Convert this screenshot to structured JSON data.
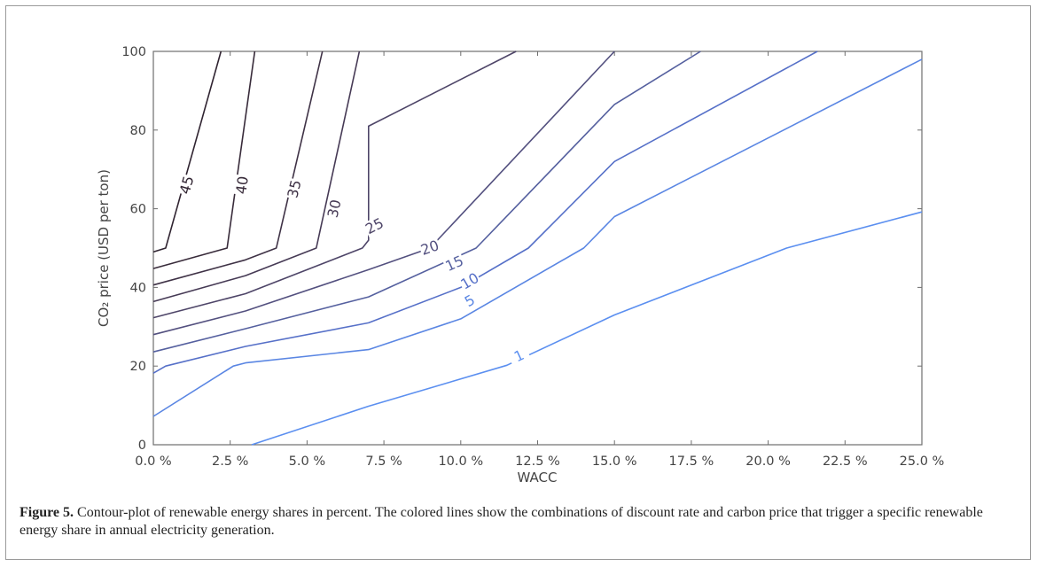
{
  "chart_data": {
    "type": "line",
    "subtype": "contour",
    "xlabel": "WACC",
    "ylabel": "CO₂ price (USD per ton)",
    "xlim": [
      0,
      25
    ],
    "ylim": [
      0,
      100
    ],
    "x_ticks": [
      "0.0 %",
      "2.5 %",
      "5.0 %",
      "7.5 %",
      "10.0 %",
      "12.5 %",
      "15.0 %",
      "17.5 %",
      "20.0 %",
      "22.5 %",
      "25.0 %"
    ],
    "y_ticks": [
      "0",
      "20",
      "40",
      "60",
      "80",
      "100"
    ],
    "grid": false,
    "series": [
      {
        "name": "1",
        "color": "#5b8ff0",
        "points": [
          [
            3.2,
            0
          ],
          [
            7,
            9.8
          ],
          [
            11.5,
            20.2
          ],
          [
            15,
            33
          ],
          [
            20.6,
            50
          ],
          [
            25,
            59.2
          ]
        ]
      },
      {
        "name": "5",
        "color": "#5a86e3",
        "points": [
          [
            0,
            7.2
          ],
          [
            2.6,
            20
          ],
          [
            3,
            20.8
          ],
          [
            7,
            24.2
          ],
          [
            10,
            32
          ],
          [
            14,
            50
          ],
          [
            15,
            58
          ],
          [
            25,
            98
          ]
        ]
      },
      {
        "name": "10",
        "color": "#5670c8",
        "points": [
          [
            0,
            18.2
          ],
          [
            0.4,
            20
          ],
          [
            3,
            25
          ],
          [
            7,
            31
          ],
          [
            10,
            40
          ],
          [
            12.2,
            50
          ],
          [
            15,
            72
          ],
          [
            21.6,
            100
          ]
        ]
      },
      {
        "name": "15",
        "color": "#55609f",
        "points": [
          [
            0,
            23.6
          ],
          [
            3,
            29.5
          ],
          [
            7,
            37.6
          ],
          [
            10.5,
            50
          ],
          [
            15,
            86.5
          ],
          [
            17.8,
            100
          ]
        ]
      },
      {
        "name": "20",
        "color": "#53507f",
        "points": [
          [
            0,
            28
          ],
          [
            3,
            34
          ],
          [
            7,
            44.5
          ],
          [
            9,
            50
          ],
          [
            15,
            100
          ]
        ]
      },
      {
        "name": "25",
        "color": "#4e4568",
        "points": [
          [
            0,
            32.3
          ],
          [
            3,
            38.4
          ],
          [
            6.8,
            50
          ],
          [
            7,
            52
          ],
          [
            7,
            81
          ],
          [
            11.8,
            100
          ]
        ]
      },
      {
        "name": "30",
        "color": "#463a55",
        "points": [
          [
            0,
            36.4
          ],
          [
            3,
            43
          ],
          [
            5.3,
            50
          ],
          [
            6.7,
            100
          ]
        ]
      },
      {
        "name": "35",
        "color": "#3f3246",
        "points": [
          [
            0,
            40.6
          ],
          [
            3,
            47
          ],
          [
            4,
            50
          ],
          [
            5.5,
            100
          ]
        ]
      },
      {
        "name": "40",
        "color": "#382b3a",
        "points": [
          [
            0,
            44.8
          ],
          [
            2.4,
            50
          ],
          [
            3.3,
            100
          ]
        ]
      },
      {
        "name": "45",
        "color": "#302431",
        "points": [
          [
            0,
            49
          ],
          [
            0.4,
            50
          ],
          [
            2.2,
            100
          ]
        ]
      }
    ],
    "contour_labels": [
      {
        "text": "45",
        "x": 1.1,
        "y": 66
      },
      {
        "text": "40",
        "x": 2.9,
        "y": 66
      },
      {
        "text": "35",
        "x": 4.6,
        "y": 65
      },
      {
        "text": "30",
        "x": 5.9,
        "y": 60
      },
      {
        "text": "25",
        "x": 7.2,
        "y": 55.5
      },
      {
        "text": "20",
        "x": 9.0,
        "y": 50
      },
      {
        "text": "15",
        "x": 9.8,
        "y": 46
      },
      {
        "text": "10",
        "x": 10.3,
        "y": 41.5
      },
      {
        "text": "5",
        "x": 10.3,
        "y": 36.5
      },
      {
        "text": "1",
        "x": 11.9,
        "y": 22.5
      }
    ]
  },
  "caption": {
    "label": "Figure 5.",
    "text": " Contour-plot of renewable energy shares in percent. The colored lines show the combinations of discount rate and carbon price that trigger a specific renewable energy share in annual electricity generation."
  }
}
